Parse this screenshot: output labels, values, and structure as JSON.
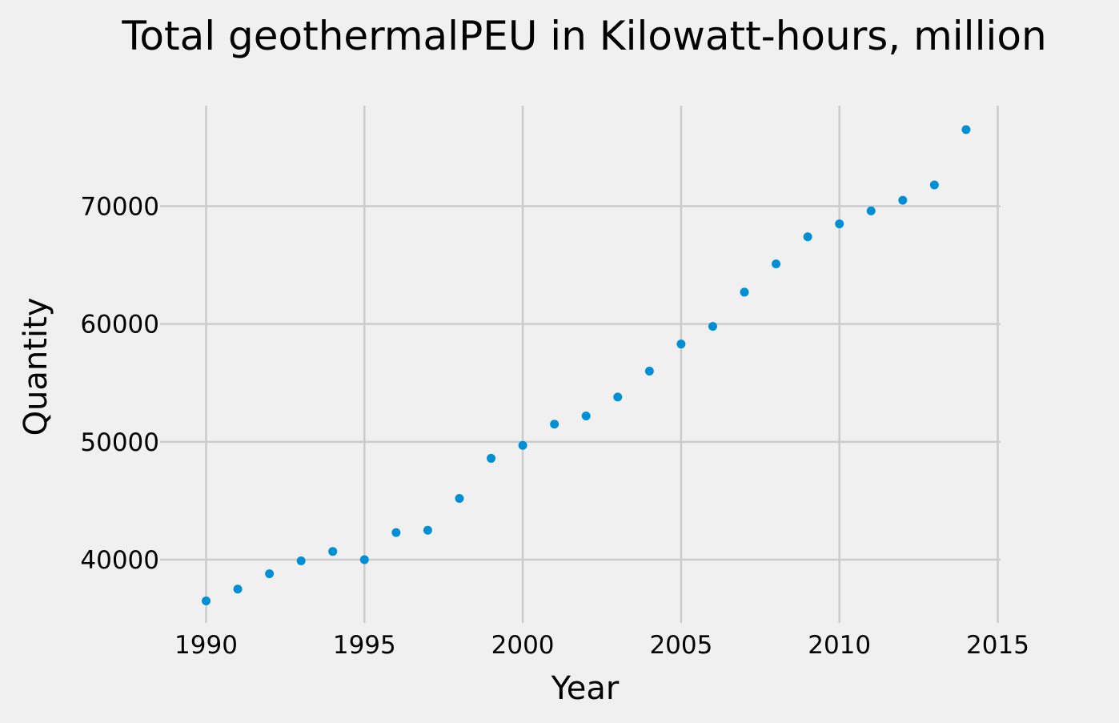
{
  "chart_data": {
    "type": "scatter",
    "title": "Total geothermalPEU in Kilowatt-hours, million",
    "xlabel": "Year",
    "ylabel": "Quantity",
    "xlim": [
      1990,
      2015
    ],
    "ylim": [
      35000,
      78000
    ],
    "x_ticks": [
      1990,
      1995,
      2000,
      2005,
      2010,
      2015
    ],
    "y_ticks": [
      40000,
      50000,
      60000,
      70000
    ],
    "grid": true,
    "point_color": "#008fd5",
    "x": [
      1990,
      1991,
      1992,
      1993,
      1994,
      1995,
      1996,
      1997,
      1998,
      1999,
      2000,
      2001,
      2002,
      2003,
      2004,
      2005,
      2006,
      2007,
      2008,
      2009,
      2010,
      2011,
      2012,
      2013,
      2014
    ],
    "y": [
      36500,
      37500,
      38800,
      39900,
      40700,
      40000,
      42300,
      42500,
      45200,
      48600,
      49700,
      51500,
      52200,
      53800,
      56000,
      58300,
      59800,
      62700,
      65100,
      67400,
      68500,
      69600,
      70500,
      71800,
      76500
    ]
  }
}
